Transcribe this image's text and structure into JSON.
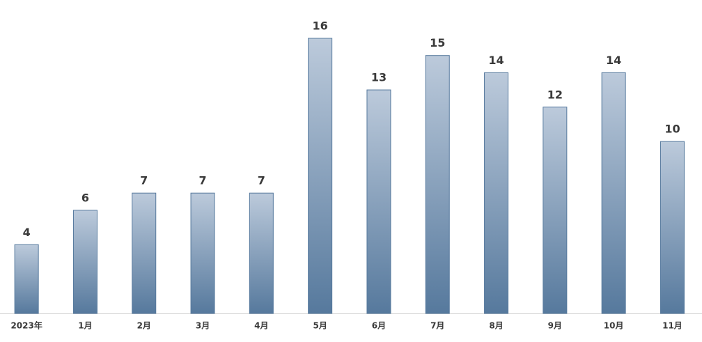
{
  "chart_data": {
    "type": "bar",
    "categories": [
      "2023年",
      "1月",
      "2月",
      "3月",
      "4月",
      "5月",
      "6月",
      "7月",
      "8月",
      "9月",
      "10月",
      "11月"
    ],
    "values": [
      4,
      6,
      7,
      7,
      7,
      16,
      13,
      15,
      14,
      12,
      14,
      10
    ],
    "color": "#56799d"
  }
}
